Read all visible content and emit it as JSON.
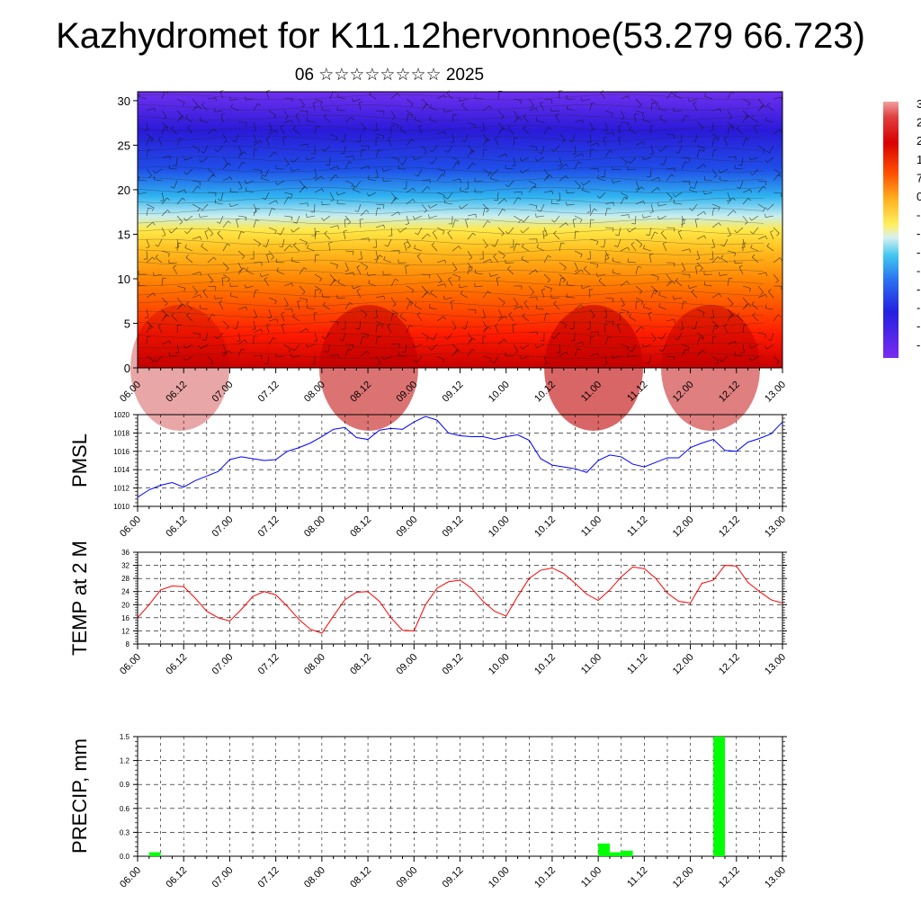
{
  "page": {
    "title": "Kazhydromet for K11.12hervonnoe(53.279 66.723)",
    "subtitle": "06 ☆☆☆☆☆☆☆☆ 2025"
  },
  "time_labels": [
    "06.00",
    "06.12",
    "07.00",
    "07.12",
    "08.00",
    "08.12",
    "09.00",
    "09.12",
    "10.00",
    "10.12",
    "11.00",
    "11.12",
    "12.00",
    "12.12",
    "13.00"
  ],
  "chart_data": [
    {
      "type": "heatmap",
      "y_ticks": [
        0,
        5,
        10,
        15,
        20,
        25,
        30
      ],
      "ylim": [
        0,
        31
      ],
      "colorbar_labels": [
        "3",
        "2",
        "2",
        "1",
        "7",
        "0",
        "-",
        "-",
        "-",
        "-",
        "-",
        "-",
        "-",
        "-"
      ],
      "colors": {
        "low": "#6a1fe8",
        "mid": "#ffe94a",
        "high": "#c80000"
      },
      "temperature_by_level": [
        {
          "level": 0,
          "value": 28
        },
        {
          "level": 5,
          "value": 22
        },
        {
          "level": 10,
          "value": 12
        },
        {
          "level": 15,
          "value": 3
        },
        {
          "level": 20,
          "value": -18
        },
        {
          "level": 25,
          "value": -30
        },
        {
          "level": 30,
          "value": -36
        }
      ]
    },
    {
      "type": "line",
      "ylabel": "PMSL",
      "ylim": [
        1010,
        1020
      ],
      "y_ticks": [
        1010,
        1012,
        1014,
        1016,
        1018,
        1020
      ],
      "color": "#0000ff",
      "x_start": 0,
      "x_step": 3,
      "values": [
        1011.0,
        1011.8,
        1012.3,
        1012.6,
        1012.1,
        1012.8,
        1013.3,
        1013.8,
        1015.1,
        1015.4,
        1015.2,
        1015.0,
        1015.1,
        1016.0,
        1016.4,
        1016.9,
        1017.6,
        1018.4,
        1018.6,
        1017.5,
        1017.3,
        1018.3,
        1018.5,
        1018.4,
        1019.2,
        1019.8,
        1019.4,
        1018.0,
        1017.7,
        1017.6,
        1017.6,
        1017.3,
        1017.6,
        1017.8,
        1017.2,
        1015.2,
        1014.5,
        1014.3,
        1014.1,
        1013.7,
        1015.0,
        1015.6,
        1015.4,
        1014.6,
        1014.3,
        1014.8,
        1015.3,
        1015.3,
        1016.4,
        1016.9,
        1017.3,
        1016.1,
        1016.0,
        1017.0,
        1017.4,
        1017.9,
        1019.2
      ]
    },
    {
      "type": "line",
      "ylabel": "TEMP at 2 M",
      "ylim": [
        8,
        36
      ],
      "y_ticks": [
        8,
        12,
        16,
        20,
        24,
        28,
        32,
        36
      ],
      "color": "#ff0000",
      "x_start": 0,
      "x_step": 3,
      "values": [
        16,
        20,
        24.5,
        25.7,
        25.5,
        22,
        18,
        16,
        15,
        18.5,
        22.5,
        24,
        23,
        19.5,
        15.5,
        12.5,
        11.3,
        16.5,
        21.5,
        23.8,
        24,
        21,
        16,
        12.2,
        12,
        20,
        25,
        27,
        27.5,
        25,
        21,
        18,
        16.5,
        22.5,
        28,
        30.5,
        31.2,
        29.5,
        26.5,
        23.2,
        21.3,
        24.5,
        28.5,
        31.5,
        31,
        28,
        23.5,
        21,
        20.5,
        26.5,
        27.5,
        32,
        31.8,
        26.8,
        24,
        21.5,
        20.5
      ]
    },
    {
      "type": "bar",
      "ylabel": "PRECIP, mm",
      "ylim": [
        0,
        1.5
      ],
      "y_ticks": [
        "0.0",
        "0.3",
        "0.6",
        "0.9",
        "1.2",
        "1.5"
      ],
      "color": "#00ff00",
      "bars": [
        {
          "x": 3,
          "value": 0.05
        },
        {
          "x": 120,
          "value": 0.16
        },
        {
          "x": 123,
          "value": 0.05
        },
        {
          "x": 126,
          "value": 0.07
        },
        {
          "x": 150,
          "value": 1.5
        }
      ]
    }
  ]
}
